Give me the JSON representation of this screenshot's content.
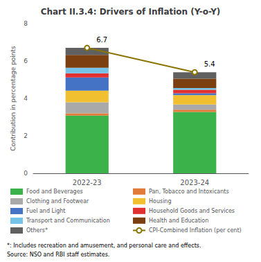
{
  "chart_data": {
    "type": "bar",
    "title": "Chart II.3.4: Drivers of Inflation (Y-o-Y)",
    "ylabel": "Contribution in percentage points",
    "categories": [
      "2022-23",
      "2023-24"
    ],
    "stacked": true,
    "series": [
      {
        "name": "Food and Beverages",
        "color": "#3cb34a",
        "values": [
          3.08,
          3.28
        ]
      },
      {
        "name": "Pan, Tobacco and Intoxicants",
        "color": "#e07b39",
        "values": [
          0.12,
          0.12
        ]
      },
      {
        "name": "Clothing and Footwear",
        "color": "#a9a9a9",
        "values": [
          0.6,
          0.28
        ]
      },
      {
        "name": "Housing",
        "color": "#f0c030",
        "values": [
          0.62,
          0.5
        ]
      },
      {
        "name": "Fuel and Light",
        "color": "#4472c4",
        "values": [
          0.7,
          0.1
        ]
      },
      {
        "name": "Household Goods and Services",
        "color": "#e03030",
        "values": [
          0.22,
          0.18
        ]
      },
      {
        "name": "Transport and Communication",
        "color": "#75c4e8",
        "values": [
          0.3,
          0.1
        ]
      },
      {
        "name": "Health and Education",
        "color": "#7b3f10",
        "values": [
          0.68,
          0.5
        ]
      },
      {
        "name": "Others*",
        "color": "#606060",
        "values": [
          0.38,
          0.34
        ]
      },
      {
        "name": "CPI-Combined Inflation (per cent)",
        "type": "line",
        "marker": "circle",
        "color": "#8b7500",
        "values": [
          6.7,
          5.4
        ]
      }
    ],
    "annotations": [
      {
        "text": "6.7",
        "category": "2022-23",
        "value": 6.7
      },
      {
        "text": "5.4",
        "category": "2023-24",
        "value": 5.4
      }
    ],
    "footnotes": [
      "*: Includes recreation and amusement, and personal care and effects.",
      "Source: NSO and RBI staff estimates."
    ],
    "ylim": [
      0,
      8
    ],
    "yticks": [
      0,
      2,
      4,
      6,
      8
    ],
    "grid": false,
    "legend": "bottom"
  }
}
